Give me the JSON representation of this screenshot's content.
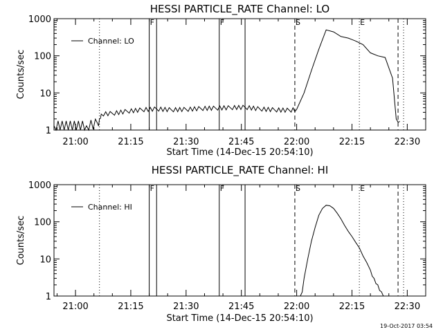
{
  "chart_data": [
    {
      "type": "line",
      "title": "HESSI PARTICLE_RATE Channel: LO",
      "xlabel": "Start Time (14-Dec-15 20:54:10)",
      "ylabel": "Counts/sec",
      "y_scale": "log",
      "xlim": [
        "20:54:10",
        "22:35"
      ],
      "ylim": [
        1,
        1000
      ],
      "x_tick_labels": [
        "21:00",
        "21:15",
        "21:30",
        "21:45",
        "22:00",
        "22:15",
        "22:30"
      ],
      "y_tick_labels": [
        "1",
        "10",
        "100",
        "1000"
      ],
      "legend": {
        "position": "top-left",
        "entries": [
          "Channel: LO"
        ]
      },
      "markers": [
        {
          "label": "F",
          "time": "21:20",
          "style": "solid"
        },
        {
          "label": "",
          "time": "21:22",
          "style": "solid"
        },
        {
          "label": "F",
          "time": "21:39",
          "style": "solid"
        },
        {
          "label": "",
          "time": "21:46",
          "style": "solid"
        },
        {
          "label": "S",
          "time": "21:59.5",
          "style": "dashed"
        },
        {
          "label": "E",
          "time": "22:17",
          "style": "dotted"
        },
        {
          "label": "",
          "time": "21:06.5",
          "style": "dotted"
        },
        {
          "label": "",
          "time": "22:27.5",
          "style": "dashed"
        },
        {
          "label": "",
          "time": "22:29",
          "style": "dotted"
        }
      ],
      "series": [
        {
          "name": "Channel: LO",
          "x": [
            "20:54:10",
            "21:03",
            "21:06",
            "21:06:30",
            "21:07",
            "21:10",
            "21:14",
            "21:18",
            "21:22",
            "21:26",
            "21:30",
            "21:34",
            "21:38",
            "21:42",
            "21:46",
            "21:50",
            "21:54",
            "21:58",
            "22:00",
            "22:02",
            "22:04",
            "22:06",
            "22:08",
            "22:10",
            "22:12",
            "22:14",
            "22:16",
            "22:18",
            "22:20",
            "22:22",
            "22:24",
            "22:26",
            "22:27",
            "22:28"
          ],
          "y": [
            1.3,
            1.3,
            1.5,
            2.0,
            2.7,
            2.8,
            3.2,
            3.5,
            3.7,
            3.5,
            3.6,
            3.8,
            3.9,
            4.0,
            4.1,
            3.7,
            3.5,
            3.4,
            3.6,
            10,
            40,
            150,
            500,
            440,
            330,
            300,
            250,
            200,
            120,
            100,
            90,
            25,
            2.0,
            1.7
          ]
        }
      ]
    },
    {
      "type": "line",
      "title": "HESSI PARTICLE_RATE Channel: HI",
      "xlabel": "Start Time (14-Dec-15 20:54:10)",
      "ylabel": "Counts/sec",
      "y_scale": "log",
      "xlim": [
        "20:54:10",
        "22:35"
      ],
      "ylim": [
        1,
        1000
      ],
      "x_tick_labels": [
        "21:00",
        "21:15",
        "21:30",
        "21:45",
        "22:00",
        "22:15",
        "22:30"
      ],
      "y_tick_labels": [
        "1",
        "10",
        "100",
        "1000"
      ],
      "legend": {
        "position": "top-left",
        "entries": [
          "Channel: HI"
        ]
      },
      "markers": [
        {
          "label": "F",
          "time": "21:20",
          "style": "solid"
        },
        {
          "label": "",
          "time": "21:22",
          "style": "solid"
        },
        {
          "label": "F",
          "time": "21:39",
          "style": "solid"
        },
        {
          "label": "",
          "time": "21:46",
          "style": "solid"
        },
        {
          "label": "S",
          "time": "21:59.5",
          "style": "dashed"
        },
        {
          "label": "E",
          "time": "22:17",
          "style": "dotted"
        },
        {
          "label": "",
          "time": "21:06.5",
          "style": "dotted"
        },
        {
          "label": "",
          "time": "22:27.5",
          "style": "dashed"
        },
        {
          "label": "",
          "time": "22:29",
          "style": "dotted"
        }
      ],
      "series": [
        {
          "name": "Channel: HI",
          "x": [
            "22:01",
            "22:02",
            "22:03",
            "22:04",
            "22:05",
            "22:06",
            "22:07",
            "22:08",
            "22:09",
            "22:10",
            "22:11",
            "22:12",
            "22:13",
            "22:14",
            "22:15",
            "22:16",
            "22:17",
            "22:18",
            "22:19",
            "22:20",
            "22:21",
            "22:22",
            "22:23",
            "22:24"
          ],
          "y": [
            1,
            3,
            10,
            30,
            70,
            150,
            230,
            280,
            270,
            230,
            170,
            120,
            80,
            55,
            40,
            28,
            20,
            12,
            8,
            5,
            3,
            2,
            1.3,
            1
          ]
        }
      ]
    }
  ],
  "footer": {
    "timestamp": "19-Oct-2017 03:54"
  }
}
